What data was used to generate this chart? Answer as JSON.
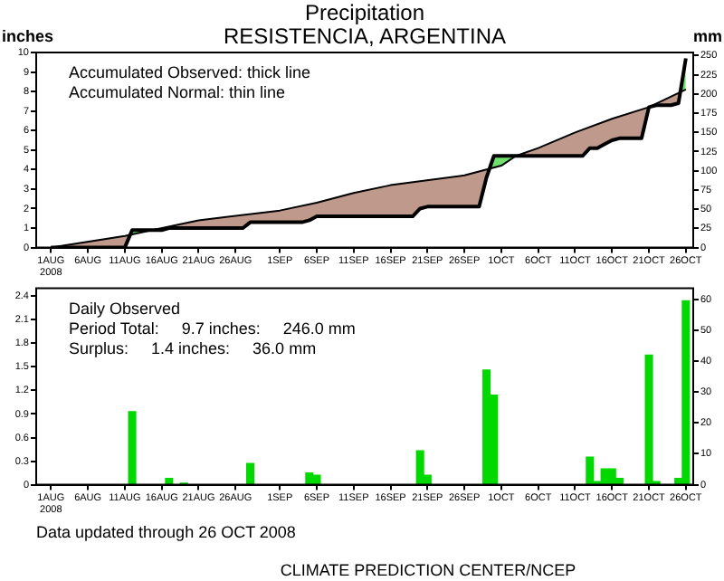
{
  "chart_data": [
    {
      "type": "line",
      "title": "Precipitation",
      "subtitle": "RESISTENCIA, ARGENTINA",
      "ylabel": "inches",
      "y2label": "mm",
      "annotations": [
        "Accumulated Observed: thick line",
        "Accumulated Normal: thin line"
      ],
      "xlim": [
        "2008-07-30",
        "2008-10-27"
      ],
      "xticks": [
        {
          "value": "2008-08-01",
          "label": "1AUG\n2008"
        },
        {
          "value": "2008-08-06",
          "label": "6AUG"
        },
        {
          "value": "2008-08-11",
          "label": "11AUG"
        },
        {
          "value": "2008-08-16",
          "label": "16AUG"
        },
        {
          "value": "2008-08-21",
          "label": "21AUG"
        },
        {
          "value": "2008-08-26",
          "label": "26AUG"
        },
        {
          "value": "2008-09-01",
          "label": "1SEP"
        },
        {
          "value": "2008-09-06",
          "label": "6SEP"
        },
        {
          "value": "2008-09-11",
          "label": "11SEP"
        },
        {
          "value": "2008-09-16",
          "label": "16SEP"
        },
        {
          "value": "2008-09-21",
          "label": "21SEP"
        },
        {
          "value": "2008-09-26",
          "label": "26SEP"
        },
        {
          "value": "2008-10-01",
          "label": "1OCT"
        },
        {
          "value": "2008-10-06",
          "label": "6OCT"
        },
        {
          "value": "2008-10-11",
          "label": "11OCT"
        },
        {
          "value": "2008-10-16",
          "label": "16OCT"
        },
        {
          "value": "2008-10-21",
          "label": "21OCT"
        },
        {
          "value": "2008-10-26",
          "label": "26OCT"
        }
      ],
      "ylim": [
        0,
        10
      ],
      "yticks": [
        0,
        1,
        2,
        3,
        4,
        5,
        6,
        7,
        8,
        9,
        10
      ],
      "y2lim": [
        0,
        254
      ],
      "y2ticks": [
        0,
        25,
        50,
        75,
        100,
        125,
        150,
        175,
        200,
        225,
        250
      ],
      "series": [
        {
          "color": "#000000",
          "x": [
            "2008-08-01",
            "2008-08-11",
            "2008-08-12",
            "2008-08-16",
            "2008-08-17",
            "2008-08-18",
            "2008-08-19",
            "2008-08-27",
            "2008-08-28",
            "2008-09-04",
            "2008-09-05",
            "2008-09-06",
            "2008-09-19",
            "2008-09-20",
            "2008-09-21",
            "2008-09-28",
            "2008-09-29",
            "2008-09-30",
            "2008-10-12",
            "2008-10-13",
            "2008-10-14",
            "2008-10-15",
            "2008-10-16",
            "2008-10-17",
            "2008-10-20",
            "2008-10-21",
            "2008-10-22",
            "2008-10-24",
            "2008-10-25",
            "2008-10-26"
          ],
          "values": [
            0,
            0,
            0.9,
            0.9,
            1.0,
            1.0,
            1.0,
            1.0,
            1.3,
            1.3,
            1.4,
            1.6,
            1.6,
            2.0,
            2.1,
            2.1,
            3.6,
            4.7,
            4.7,
            5.1,
            5.1,
            5.3,
            5.5,
            5.6,
            5.6,
            7.2,
            7.3,
            7.3,
            7.4,
            9.7
          ]
        },
        {
          "color": "#000000",
          "x": [
            "2008-08-01",
            "2008-08-11",
            "2008-08-21",
            "2008-09-01",
            "2008-09-06",
            "2008-09-11",
            "2008-09-16",
            "2008-09-26",
            "2008-10-01",
            "2008-10-03",
            "2008-10-06",
            "2008-10-11",
            "2008-10-16",
            "2008-10-21",
            "2008-10-26"
          ],
          "values": [
            0,
            0.6,
            1.4,
            1.9,
            2.3,
            2.8,
            3.2,
            3.7,
            4.2,
            4.7,
            5.1,
            5.9,
            6.6,
            7.2,
            8.1
          ]
        }
      ]
    },
    {
      "type": "bar",
      "annotations": [
        "Daily Observed",
        "Period Total:     9.7 inches:     246.0 mm",
        "Surplus:     1.4 inches:     36.0 mm",
        "Data updated through 26 OCT 2008",
        "CLIMATE PREDICTION CENTER/NCEP"
      ],
      "xlim": [
        "2008-07-30",
        "2008-10-27"
      ],
      "xticks": [
        {
          "value": "2008-08-01",
          "label": "1AUG\n2008"
        },
        {
          "value": "2008-08-06",
          "label": "6AUG"
        },
        {
          "value": "2008-08-11",
          "label": "11AUG"
        },
        {
          "value": "2008-08-16",
          "label": "16AUG"
        },
        {
          "value": "2008-08-21",
          "label": "21AUG"
        },
        {
          "value": "2008-08-26",
          "label": "26AUG"
        },
        {
          "value": "2008-09-01",
          "label": "1SEP"
        },
        {
          "value": "2008-09-06",
          "label": "6SEP"
        },
        {
          "value": "2008-09-11",
          "label": "11SEP"
        },
        {
          "value": "2008-09-16",
          "label": "16SEP"
        },
        {
          "value": "2008-09-21",
          "label": "21SEP"
        },
        {
          "value": "2008-09-26",
          "label": "26SEP"
        },
        {
          "value": "2008-10-01",
          "label": "1OCT"
        },
        {
          "value": "2008-10-06",
          "label": "6OCT"
        },
        {
          "value": "2008-10-11",
          "label": "11OCT"
        },
        {
          "value": "2008-10-16",
          "label": "16OCT"
        },
        {
          "value": "2008-10-21",
          "label": "21OCT"
        },
        {
          "value": "2008-10-26",
          "label": "26OCT"
        }
      ],
      "ylim": [
        0,
        2.5
      ],
      "yticks": [
        0,
        0.3,
        0.6,
        0.9,
        1.2,
        1.5,
        1.8,
        2.1,
        2.4
      ],
      "y2lim": [
        0,
        63.5
      ],
      "y2ticks": [
        0,
        10,
        20,
        30,
        40,
        50,
        60
      ],
      "series": [
        {
          "color": "#00d800",
          "x": [
            "2008-08-12",
            "2008-08-17",
            "2008-08-19",
            "2008-08-28",
            "2008-09-05",
            "2008-09-06",
            "2008-09-20",
            "2008-09-21",
            "2008-09-29",
            "2008-09-30",
            "2008-10-13",
            "2008-10-14",
            "2008-10-15",
            "2008-10-16",
            "2008-10-17",
            "2008-10-21",
            "2008-10-22",
            "2008-10-25",
            "2008-10-26"
          ],
          "values": [
            0.93,
            0.08,
            0.02,
            0.27,
            0.15,
            0.12,
            0.43,
            0.12,
            1.46,
            1.14,
            0.35,
            0.04,
            0.2,
            0.2,
            0.08,
            1.65,
            0.04,
            0.08,
            2.34
          ]
        }
      ]
    }
  ]
}
